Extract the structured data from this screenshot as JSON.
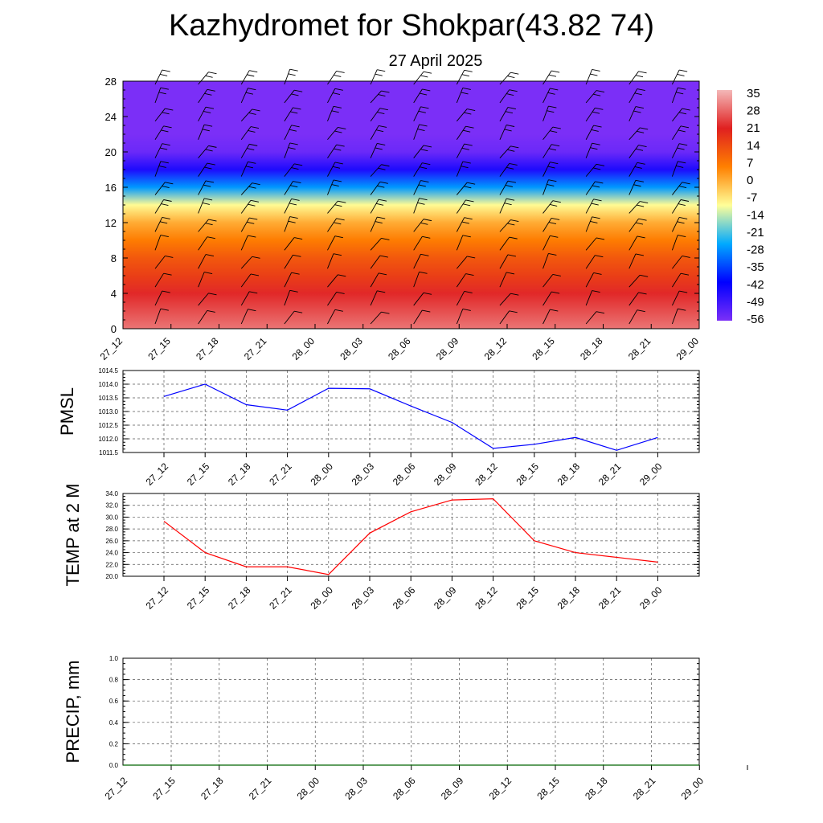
{
  "header": {
    "title": "Kazhydromet for Shokpar(43.82 74)",
    "subtitle": "27 April 2025"
  },
  "colorbar": {
    "labels": [
      "35",
      "28",
      "21",
      "14",
      "7",
      "0",
      "-7",
      "-14",
      "-21",
      "-28",
      "-35",
      "-42",
      "-49",
      "-56"
    ],
    "colors": [
      "#f4b8b8",
      "#e02020",
      "#ff8000",
      "#ffff99",
      "#00aaff",
      "#0000ff",
      "#7b2ff7"
    ]
  },
  "chart_data": [
    {
      "type": "heatmap",
      "name": "temperature-wind-cross-section",
      "x_tick_labels": [
        "27_12",
        "27_15",
        "27_18",
        "27_21",
        "28_00",
        "28_03",
        "28_06",
        "28_09",
        "28_12",
        "28_15",
        "28_18",
        "28_21",
        "29_00"
      ],
      "y_tick_labels": [
        "0",
        "4",
        "8",
        "12",
        "16",
        "20",
        "24",
        "28"
      ],
      "ylim": [
        0,
        28
      ],
      "levels": [
        0,
        2,
        4,
        6,
        8,
        10,
        12,
        14,
        16,
        18,
        20,
        22,
        24,
        26,
        28
      ],
      "temperature_by_level": [
        28,
        24,
        20,
        14,
        10,
        4,
        -2,
        -12,
        -30,
        -48,
        -58,
        -60,
        -60,
        -60,
        -60
      ],
      "wind_barbs": true
    },
    {
      "type": "line",
      "ylabel": "PMSL",
      "x_tick_labels": [
        "27_12",
        "27_15",
        "27_18",
        "27_21",
        "28_00",
        "28_03",
        "28_06",
        "28_09",
        "28_12",
        "28_15",
        "28_18",
        "28_21",
        "29_00"
      ],
      "y_tick_labels": [
        "1011.5",
        "1012.0",
        "1012.5",
        "1013.0",
        "1013.5",
        "1014.0",
        "1014.5"
      ],
      "ylim": [
        1011.5,
        1014.5
      ],
      "values": [
        1013.55,
        1014.0,
        1013.25,
        1013.05,
        1013.85,
        1013.83,
        1013.2,
        1012.6,
        1011.65,
        1011.8,
        1012.05,
        1011.58,
        1012.05
      ],
      "color": "#0000ff",
      "grid": true
    },
    {
      "type": "line",
      "ylabel": "TEMP at 2 M",
      "x_tick_labels": [
        "27_12",
        "27_15",
        "27_18",
        "27_21",
        "28_00",
        "28_03",
        "28_06",
        "28_09",
        "28_12",
        "28_15",
        "28_18",
        "28_21",
        "29_00"
      ],
      "y_tick_labels": [
        "20.0",
        "22.0",
        "24.0",
        "26.0",
        "28.0",
        "30.0",
        "32.0",
        "34.0"
      ],
      "ylim": [
        20,
        34
      ],
      "values": [
        29.3,
        24.0,
        21.6,
        21.6,
        20.3,
        27.3,
        30.9,
        32.9,
        33.1,
        26.0,
        24.0,
        23.2,
        22.4
      ],
      "color": "#ff0000",
      "grid": true
    },
    {
      "type": "line",
      "ylabel": "PRECIP, mm",
      "x_tick_labels": [
        "27_12",
        "27_15",
        "27_18",
        "27_21",
        "28_00",
        "28_03",
        "28_06",
        "28_09",
        "28_12",
        "28_15",
        "28_18",
        "28_21",
        "29_00"
      ],
      "y_tick_labels": [
        "0.0",
        "0.2",
        "0.4",
        "0.6",
        "0.8",
        "1.0"
      ],
      "ylim": [
        0,
        1
      ],
      "values": [
        0,
        0,
        0,
        0,
        0,
        0,
        0,
        0,
        0,
        0,
        0,
        0,
        0
      ],
      "color": "#006400",
      "grid": true
    }
  ]
}
